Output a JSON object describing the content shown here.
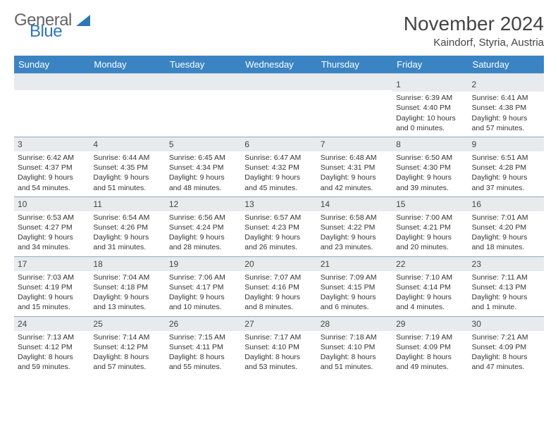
{
  "logo": {
    "text1": "General",
    "text2": "Blue"
  },
  "title": "November 2024",
  "location": "Kaindorf, Styria, Austria",
  "colors": {
    "header_bg": "#3b84c4",
    "header_fg": "#ffffff",
    "daynum_bg": "#e8ebed",
    "rule": "#8fa8bd",
    "logo_blue": "#2e77b8"
  },
  "day_names": [
    "Sunday",
    "Monday",
    "Tuesday",
    "Wednesday",
    "Thursday",
    "Friday",
    "Saturday"
  ],
  "weeks": [
    [
      {
        "empty": true
      },
      {
        "empty": true
      },
      {
        "empty": true
      },
      {
        "empty": true
      },
      {
        "empty": true
      },
      {
        "n": "1",
        "sr": "Sunrise: 6:39 AM",
        "ss": "Sunset: 4:40 PM",
        "dl": "Daylight: 10 hours and 0 minutes."
      },
      {
        "n": "2",
        "sr": "Sunrise: 6:41 AM",
        "ss": "Sunset: 4:38 PM",
        "dl": "Daylight: 9 hours and 57 minutes."
      }
    ],
    [
      {
        "n": "3",
        "sr": "Sunrise: 6:42 AM",
        "ss": "Sunset: 4:37 PM",
        "dl": "Daylight: 9 hours and 54 minutes."
      },
      {
        "n": "4",
        "sr": "Sunrise: 6:44 AM",
        "ss": "Sunset: 4:35 PM",
        "dl": "Daylight: 9 hours and 51 minutes."
      },
      {
        "n": "5",
        "sr": "Sunrise: 6:45 AM",
        "ss": "Sunset: 4:34 PM",
        "dl": "Daylight: 9 hours and 48 minutes."
      },
      {
        "n": "6",
        "sr": "Sunrise: 6:47 AM",
        "ss": "Sunset: 4:32 PM",
        "dl": "Daylight: 9 hours and 45 minutes."
      },
      {
        "n": "7",
        "sr": "Sunrise: 6:48 AM",
        "ss": "Sunset: 4:31 PM",
        "dl": "Daylight: 9 hours and 42 minutes."
      },
      {
        "n": "8",
        "sr": "Sunrise: 6:50 AM",
        "ss": "Sunset: 4:30 PM",
        "dl": "Daylight: 9 hours and 39 minutes."
      },
      {
        "n": "9",
        "sr": "Sunrise: 6:51 AM",
        "ss": "Sunset: 4:28 PM",
        "dl": "Daylight: 9 hours and 37 minutes."
      }
    ],
    [
      {
        "n": "10",
        "sr": "Sunrise: 6:53 AM",
        "ss": "Sunset: 4:27 PM",
        "dl": "Daylight: 9 hours and 34 minutes."
      },
      {
        "n": "11",
        "sr": "Sunrise: 6:54 AM",
        "ss": "Sunset: 4:26 PM",
        "dl": "Daylight: 9 hours and 31 minutes."
      },
      {
        "n": "12",
        "sr": "Sunrise: 6:56 AM",
        "ss": "Sunset: 4:24 PM",
        "dl": "Daylight: 9 hours and 28 minutes."
      },
      {
        "n": "13",
        "sr": "Sunrise: 6:57 AM",
        "ss": "Sunset: 4:23 PM",
        "dl": "Daylight: 9 hours and 26 minutes."
      },
      {
        "n": "14",
        "sr": "Sunrise: 6:58 AM",
        "ss": "Sunset: 4:22 PM",
        "dl": "Daylight: 9 hours and 23 minutes."
      },
      {
        "n": "15",
        "sr": "Sunrise: 7:00 AM",
        "ss": "Sunset: 4:21 PM",
        "dl": "Daylight: 9 hours and 20 minutes."
      },
      {
        "n": "16",
        "sr": "Sunrise: 7:01 AM",
        "ss": "Sunset: 4:20 PM",
        "dl": "Daylight: 9 hours and 18 minutes."
      }
    ],
    [
      {
        "n": "17",
        "sr": "Sunrise: 7:03 AM",
        "ss": "Sunset: 4:19 PM",
        "dl": "Daylight: 9 hours and 15 minutes."
      },
      {
        "n": "18",
        "sr": "Sunrise: 7:04 AM",
        "ss": "Sunset: 4:18 PM",
        "dl": "Daylight: 9 hours and 13 minutes."
      },
      {
        "n": "19",
        "sr": "Sunrise: 7:06 AM",
        "ss": "Sunset: 4:17 PM",
        "dl": "Daylight: 9 hours and 10 minutes."
      },
      {
        "n": "20",
        "sr": "Sunrise: 7:07 AM",
        "ss": "Sunset: 4:16 PM",
        "dl": "Daylight: 9 hours and 8 minutes."
      },
      {
        "n": "21",
        "sr": "Sunrise: 7:09 AM",
        "ss": "Sunset: 4:15 PM",
        "dl": "Daylight: 9 hours and 6 minutes."
      },
      {
        "n": "22",
        "sr": "Sunrise: 7:10 AM",
        "ss": "Sunset: 4:14 PM",
        "dl": "Daylight: 9 hours and 4 minutes."
      },
      {
        "n": "23",
        "sr": "Sunrise: 7:11 AM",
        "ss": "Sunset: 4:13 PM",
        "dl": "Daylight: 9 hours and 1 minute."
      }
    ],
    [
      {
        "n": "24",
        "sr": "Sunrise: 7:13 AM",
        "ss": "Sunset: 4:12 PM",
        "dl": "Daylight: 8 hours and 59 minutes."
      },
      {
        "n": "25",
        "sr": "Sunrise: 7:14 AM",
        "ss": "Sunset: 4:12 PM",
        "dl": "Daylight: 8 hours and 57 minutes."
      },
      {
        "n": "26",
        "sr": "Sunrise: 7:15 AM",
        "ss": "Sunset: 4:11 PM",
        "dl": "Daylight: 8 hours and 55 minutes."
      },
      {
        "n": "27",
        "sr": "Sunrise: 7:17 AM",
        "ss": "Sunset: 4:10 PM",
        "dl": "Daylight: 8 hours and 53 minutes."
      },
      {
        "n": "28",
        "sr": "Sunrise: 7:18 AM",
        "ss": "Sunset: 4:10 PM",
        "dl": "Daylight: 8 hours and 51 minutes."
      },
      {
        "n": "29",
        "sr": "Sunrise: 7:19 AM",
        "ss": "Sunset: 4:09 PM",
        "dl": "Daylight: 8 hours and 49 minutes."
      },
      {
        "n": "30",
        "sr": "Sunrise: 7:21 AM",
        "ss": "Sunset: 4:09 PM",
        "dl": "Daylight: 8 hours and 47 minutes."
      }
    ]
  ]
}
